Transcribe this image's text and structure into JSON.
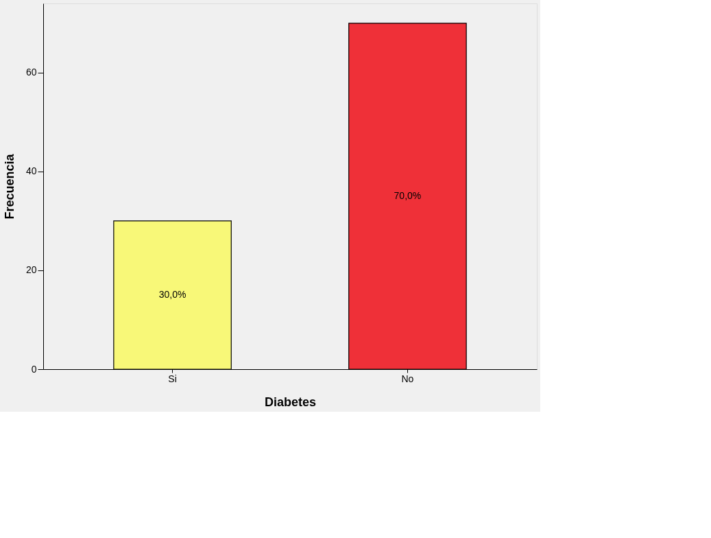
{
  "chart_data": {
    "type": "bar",
    "xlabel": "Diabetes",
    "ylabel": "Frecuencia",
    "categories": [
      "Si",
      "No"
    ],
    "values": [
      30,
      70
    ],
    "colors": [
      "#f8f878",
      "#ef3038"
    ],
    "value_labels": [
      "30,0%",
      "70,0%"
    ],
    "ylim": [
      0,
      74
    ],
    "yticks": [
      0,
      20,
      40,
      60
    ],
    "grid": false,
    "legend": false
  }
}
